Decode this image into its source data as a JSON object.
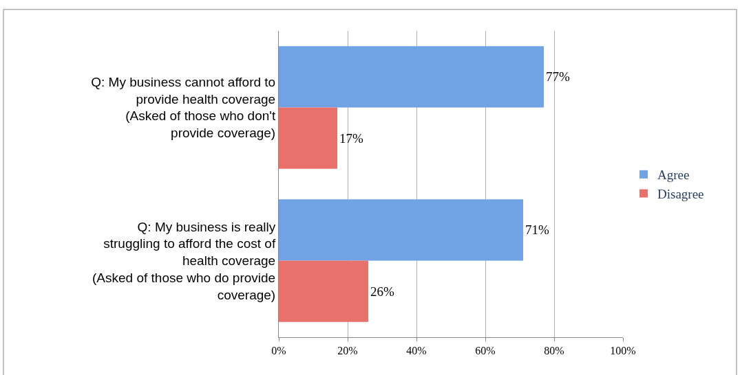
{
  "chart_data": {
    "type": "bar",
    "orientation": "horizontal",
    "categories": [
      "Q: My business cannot afford to\nprovide health coverage\n(Asked of those who don't\nprovide coverage)",
      "Q: My business is really\nstruggling to afford the cost of\nhealth coverage\n(Asked of those who do provide\ncoverage)"
    ],
    "series": [
      {
        "name": "Agree",
        "color": "#6fa3e3",
        "values": [
          77,
          71
        ],
        "value_labels": [
          "77%",
          "71%"
        ]
      },
      {
        "name": "Disagree",
        "color": "#e8716c",
        "values": [
          17,
          26
        ],
        "value_labels": [
          "17%",
          "26%"
        ]
      }
    ],
    "xlim": [
      0,
      100
    ],
    "xticks": [
      {
        "value": 0,
        "label": "0%"
      },
      {
        "value": 20,
        "label": "20%"
      },
      {
        "value": 40,
        "label": "40%"
      },
      {
        "value": 60,
        "label": "60%"
      },
      {
        "value": 80,
        "label": "80%"
      },
      {
        "value": 100,
        "label": "100%"
      }
    ],
    "grid": "x",
    "legend": "right"
  }
}
